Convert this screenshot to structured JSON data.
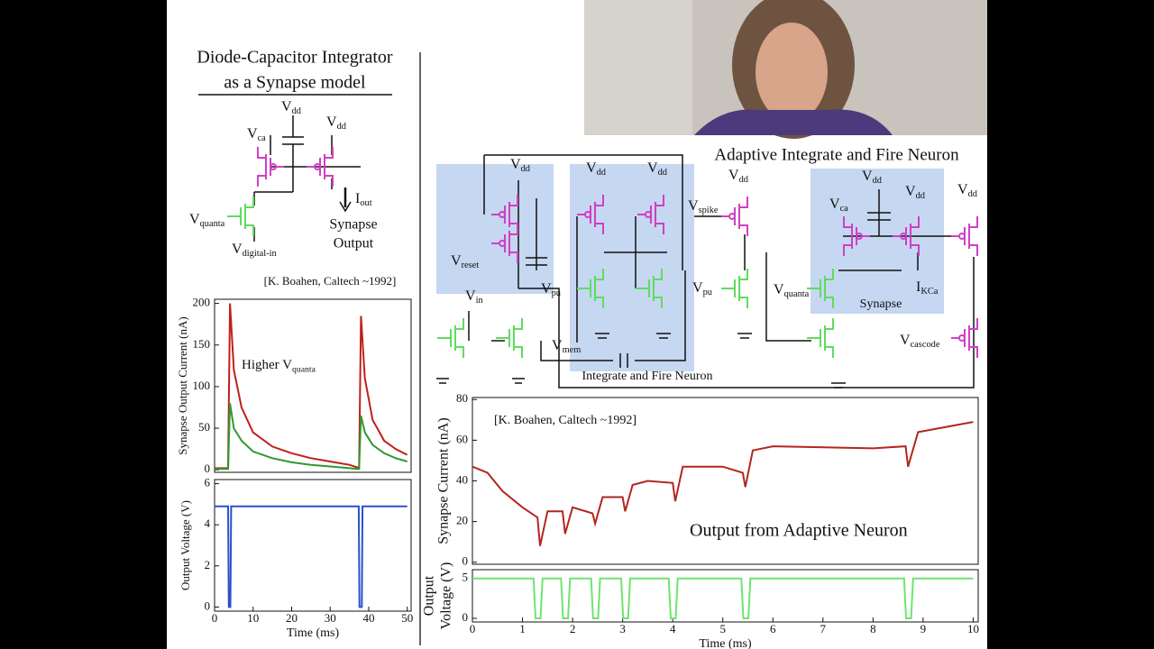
{
  "left_circuit": {
    "title_lines": [
      "Diode-Capacitor Integrator",
      "as a Synapse model"
    ],
    "labels": [
      {
        "text": "V",
        "sub": "dd"
      },
      {
        "text": "V",
        "sub": "dd"
      },
      {
        "text": "V",
        "sub": "ca"
      },
      {
        "text": "V",
        "sub": "quanta"
      },
      {
        "text": "V",
        "sub": "digital-in"
      },
      {
        "text": "I",
        "sub": "out"
      }
    ],
    "caption_lines": [
      "Synapse",
      "Output"
    ],
    "citation": "[K. Boahen, Caltech ~1992]"
  },
  "right_circuit": {
    "title": "Adaptive Integrate and Fire Neuron",
    "labels": [
      {
        "text": "V",
        "sub": "dd"
      },
      {
        "text": "V",
        "sub": "dd"
      },
      {
        "text": "V",
        "sub": "dd"
      },
      {
        "text": "V",
        "sub": "reset"
      },
      {
        "text": "V",
        "sub": "in"
      },
      {
        "text": "V",
        "sub": "pu"
      },
      {
        "text": "V",
        "sub": "mem"
      },
      {
        "text": "V",
        "sub": "spike"
      },
      {
        "text": "V",
        "sub": "dd"
      },
      {
        "text": "V",
        "sub": "pu"
      },
      {
        "text": "V",
        "sub": "quanta"
      },
      {
        "text": "V",
        "sub": "ca"
      },
      {
        "text": "V",
        "sub": "dd"
      },
      {
        "text": "V",
        "sub": "dd"
      },
      {
        "text": "V",
        "sub": "dd"
      },
      {
        "text": "I",
        "sub": "KCa"
      },
      {
        "text": "V",
        "sub": "cascode"
      }
    ],
    "block_labels": [
      "Integrate and Fire Neuron",
      "Synapse"
    ]
  },
  "chart_data": [
    {
      "type": "line",
      "ylabel": "Synapse Output Current (nA)",
      "xlim": [
        0,
        51
      ],
      "ylim": [
        -3,
        205
      ],
      "yticks": [
        0,
        50,
        100,
        150,
        200
      ],
      "annotations": [
        {
          "text": "Higher V",
          "sub": "quanta"
        }
      ],
      "x": [
        0,
        3,
        3.5,
        4,
        5,
        7,
        10,
        15,
        20,
        25,
        30,
        35,
        37,
        37.5,
        38,
        39,
        41,
        44,
        47,
        50
      ],
      "series": [
        {
          "color": "#c0201b",
          "values": [
            2,
            2,
            2,
            200,
            120,
            75,
            45,
            28,
            20,
            14,
            10,
            6,
            3,
            3,
            185,
            110,
            60,
            35,
            25,
            18
          ]
        },
        {
          "color": "#2e9a2e",
          "values": [
            1,
            1,
            1,
            80,
            50,
            35,
            22,
            14,
            9,
            6,
            4,
            2,
            1,
            1,
            65,
            45,
            30,
            20,
            14,
            10
          ]
        }
      ]
    },
    {
      "type": "line",
      "ylabel": "Output Voltage (V)",
      "xlabel": "Time (ms)",
      "xlim": [
        0,
        51
      ],
      "ylim": [
        -0.2,
        6.2
      ],
      "yticks": [
        0,
        2,
        4,
        6
      ],
      "xticks": [
        0,
        10,
        20,
        30,
        40,
        50
      ],
      "x": [
        0,
        3.5,
        3.7,
        4.1,
        4.3,
        37.4,
        37.6,
        38.2,
        38.4,
        50
      ],
      "series": [
        {
          "color": "#2c4fc9",
          "values": [
            4.9,
            4.9,
            0,
            0,
            4.9,
            4.9,
            0,
            0,
            4.9,
            4.9
          ]
        }
      ]
    },
    {
      "type": "line",
      "ylabel": "Synapse Current (nA)",
      "xlim": [
        0,
        10.1
      ],
      "ylim": [
        -1,
        81
      ],
      "yticks": [
        0,
        20,
        40,
        60,
        80
      ],
      "annotations": [
        "[K. Boahen, Caltech ~1992]",
        "Output from Adaptive Neuron"
      ],
      "x": [
        0,
        0.3,
        0.6,
        1,
        1.3,
        1.35,
        1.5,
        1.8,
        1.85,
        2,
        2.4,
        2.45,
        2.6,
        3,
        3.05,
        3.2,
        3.5,
        4,
        4.05,
        4.2,
        5,
        5.4,
        5.45,
        5.6,
        6,
        8,
        8.65,
        8.7,
        8.9,
        10
      ],
      "series": [
        {
          "color": "#b3261e",
          "values": [
            47,
            44,
            35,
            27,
            22,
            8,
            25,
            25,
            14,
            27,
            24,
            19,
            32,
            32,
            25,
            38,
            40,
            39,
            30,
            47,
            47,
            44,
            37,
            55,
            57,
            56,
            57,
            47,
            64,
            69
          ]
        }
      ]
    },
    {
      "type": "line",
      "ylabel": [
        "Output",
        "Voltage (V)"
      ],
      "xlabel": "Time (ms)",
      "xlim": [
        0,
        10.1
      ],
      "ylim": [
        -0.45,
        6.1
      ],
      "yticks": [
        0,
        5
      ],
      "xticks": [
        0,
        1,
        2,
        3,
        4,
        5,
        6,
        7,
        8,
        9,
        10
      ],
      "x": [
        0,
        1.22,
        1.26,
        1.36,
        1.4,
        1.77,
        1.81,
        1.91,
        1.95,
        2.37,
        2.41,
        2.51,
        2.55,
        2.97,
        3.01,
        3.11,
        3.15,
        3.92,
        3.96,
        4.06,
        4.1,
        5.37,
        5.41,
        5.51,
        5.55,
        8.62,
        8.66,
        8.76,
        8.8,
        10
      ],
      "series": [
        {
          "color": "#6ee46e",
          "values": [
            5,
            5,
            0,
            0,
            5,
            5,
            0,
            0,
            5,
            5,
            0,
            0,
            5,
            5,
            0,
            0,
            5,
            5,
            0,
            0,
            5,
            5,
            0,
            0,
            5,
            5,
            0,
            0,
            5,
            5
          ]
        }
      ]
    }
  ]
}
